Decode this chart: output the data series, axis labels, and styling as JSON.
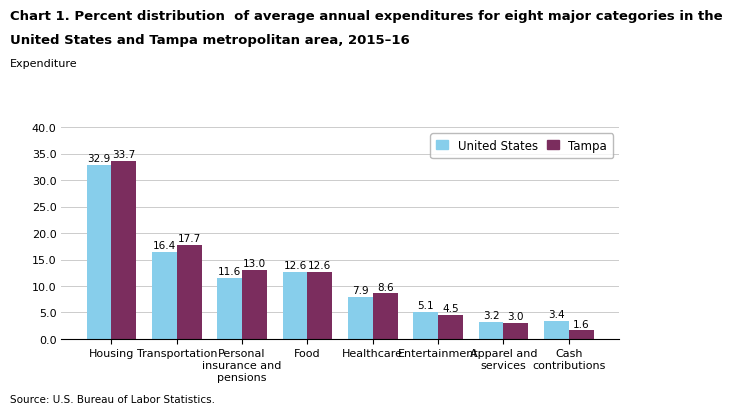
{
  "title_line1": "Chart 1. Percent distribution  of average annual expenditures for eight major categories in the",
  "title_line2": "United States and Tampa metropolitan area, 2015–16",
  "expenditure_label": "Expenditure",
  "source": "Source: U.S. Bureau of Labor Statistics.",
  "categories": [
    "Housing",
    "Transportation",
    "Personal\ninsurance and\npensions",
    "Food",
    "Healthcare",
    "Entertainment",
    "Apparel and\nservices",
    "Cash\ncontributions"
  ],
  "us_values": [
    32.9,
    16.4,
    11.6,
    12.6,
    7.9,
    5.1,
    3.2,
    3.4
  ],
  "tampa_values": [
    33.7,
    17.7,
    13.0,
    12.6,
    8.6,
    4.5,
    3.0,
    1.6
  ],
  "us_color": "#87CEEB",
  "tampa_color": "#7B2D5E",
  "us_label": "United States",
  "tampa_label": "Tampa",
  "ylim": [
    0,
    40.0
  ],
  "yticks": [
    0.0,
    5.0,
    10.0,
    15.0,
    20.0,
    25.0,
    30.0,
    35.0,
    40.0
  ],
  "bar_width": 0.38,
  "title_fontsize": 9.5,
  "tick_fontsize": 8,
  "value_label_fontsize": 7.5,
  "legend_fontsize": 8.5,
  "expend_fontsize": 8
}
